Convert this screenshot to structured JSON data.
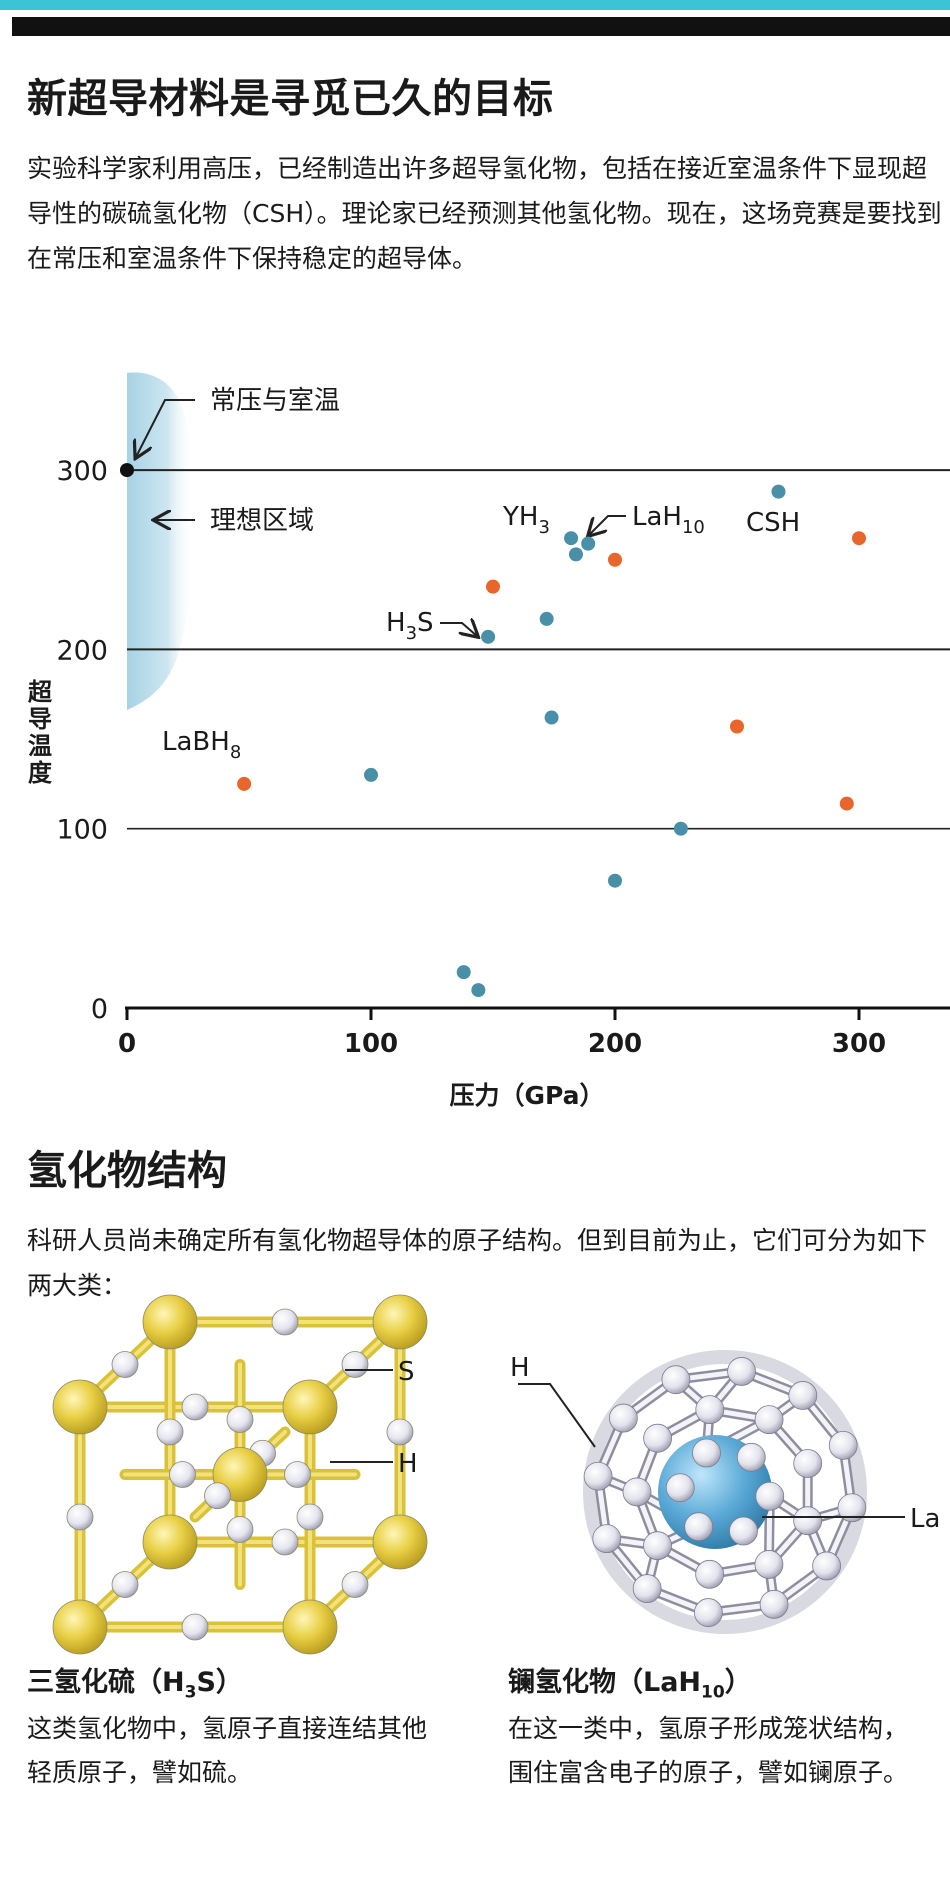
{
  "heading": "新超导材料是寻觅已久的目标",
  "intro": "实验科学家利用高压，已经制造出许多超导氢化物，包括在接近室温条件下显现超导性的碳硫氢化物（CSH）。理论家已经预测其他氢化物。现在，这场竞赛是要找到在常压和室温条件下保持稳定的超导体。",
  "chart_data": {
    "type": "scatter",
    "xlabel": "压力（GPa）",
    "ylabel": "超导温度",
    "xlim": [
      0,
      340
    ],
    "ylim": [
      0,
      310
    ],
    "xticks": [
      0,
      100,
      200,
      300
    ],
    "yticks": [
      0,
      100,
      200,
      300
    ],
    "grid": "horizontal",
    "colors": {
      "blue": "#4a8fa8",
      "orange": "#e8662c",
      "ideal_zone": "#b9dcea"
    },
    "annotations": {
      "ambient": "常压与室温",
      "ideal_zone": "理想区域",
      "point_labels": [
        {
          "base": "YH",
          "sub": "3",
          "rest": ""
        },
        {
          "base": "LaH",
          "sub": "10",
          "rest": ""
        },
        {
          "base": "CSH",
          "sub": "",
          "rest": ""
        },
        {
          "base": "H",
          "sub": "3",
          "rest": "S"
        },
        {
          "base": "LaBH",
          "sub": "8",
          "rest": ""
        }
      ]
    },
    "series": [
      {
        "color": "#4a8fa8",
        "points": [
          [
            0,
            300
          ],
          [
            100,
            130
          ],
          [
            138,
            20
          ],
          [
            144,
            10
          ],
          [
            148,
            207
          ],
          [
            172,
            217
          ],
          [
            174,
            162
          ],
          [
            182,
            262
          ],
          [
            184,
            253
          ],
          [
            189,
            259
          ],
          [
            200,
            71
          ],
          [
            227,
            100
          ],
          [
            267,
            288
          ]
        ]
      },
      {
        "color": "#e8662c",
        "points": [
          [
            48,
            125
          ],
          [
            150,
            235
          ],
          [
            200,
            250
          ],
          [
            250,
            157
          ],
          [
            295,
            114
          ],
          [
            300,
            262
          ]
        ]
      }
    ]
  },
  "section2": {
    "heading": "氢化物结构",
    "paragraph": "科研人员尚未确定所有氢化物超导体的原子结构。但到目前为止，它们可分为如下两大类："
  },
  "structures": {
    "left": {
      "title_pre": "三氢化硫（H",
      "title_sub": "3",
      "title_post": "S）",
      "text": "这类氢化物中，氢原子直接连结其他轻质原子，譬如硫。",
      "label_s": "S",
      "label_h": "H",
      "colors": {
        "sulfur": "#e7cf45",
        "hydrogen": "#e8e8f0"
      }
    },
    "right": {
      "title_pre": "镧氢化物（LaH",
      "title_sub": "10",
      "title_post": "）",
      "text": "在这一类中，氢原子形成笼状结构，围住富含电子的原子，譬如镧原子。",
      "label_h": "H",
      "label_la": "La",
      "colors": {
        "lanthanum": "#5aa9d6",
        "hydrogen": "#e8e8f0"
      }
    }
  }
}
